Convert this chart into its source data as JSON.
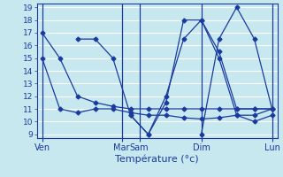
{
  "xlabel": "Température (°c)",
  "background_color": "#c8e8f0",
  "grid_color": "#ffffff",
  "line_color": "#1a3a9e",
  "vline_color": "#1a3a9e",
  "ylim": [
    8.7,
    19.3
  ],
  "yticks": [
    9,
    10,
    11,
    12,
    13,
    14,
    15,
    16,
    17,
    18,
    19
  ],
  "x_day_labels": [
    "Ven",
    "Mar",
    "Sam",
    "Dim",
    "Lun"
  ],
  "x_day_positions": [
    0,
    4.5,
    5.5,
    9,
    13
  ],
  "x_vline_positions": [
    0,
    4.5,
    5.5,
    9,
    13
  ],
  "xlim": [
    -0.3,
    13.3
  ],
  "series": [
    {
      "x": [
        0,
        1,
        2,
        3,
        4,
        5,
        6,
        7,
        8,
        9,
        10,
        11,
        12,
        13
      ],
      "y": [
        17,
        15,
        12,
        11.5,
        11.2,
        11,
        11,
        11,
        11,
        11,
        11,
        11,
        11,
        11
      ]
    },
    {
      "x": [
        0,
        1,
        2,
        3,
        4,
        5,
        6,
        7,
        8,
        9,
        10,
        11,
        12,
        13
      ],
      "y": [
        15,
        11,
        10.7,
        11,
        11,
        10.7,
        10.5,
        10.5,
        10.3,
        10.2,
        10.3,
        10.5,
        10.5,
        11
      ]
    },
    {
      "x": [
        2,
        3,
        4,
        5,
        6,
        7,
        8,
        9,
        10,
        11,
        12,
        13
      ],
      "y": [
        16.5,
        16.5,
        15,
        10.5,
        9,
        11.5,
        18,
        18,
        15,
        10.5,
        10,
        10.5
      ]
    },
    {
      "x": [
        5,
        6,
        7,
        8,
        9,
        10,
        11,
        12,
        13
      ],
      "y": [
        10.5,
        9,
        12,
        16.5,
        18,
        15.5,
        11,
        11,
        11
      ]
    },
    {
      "x": [
        9,
        10,
        11,
        12,
        13
      ],
      "y": [
        9,
        16.5,
        19,
        16.5,
        11
      ]
    }
  ]
}
